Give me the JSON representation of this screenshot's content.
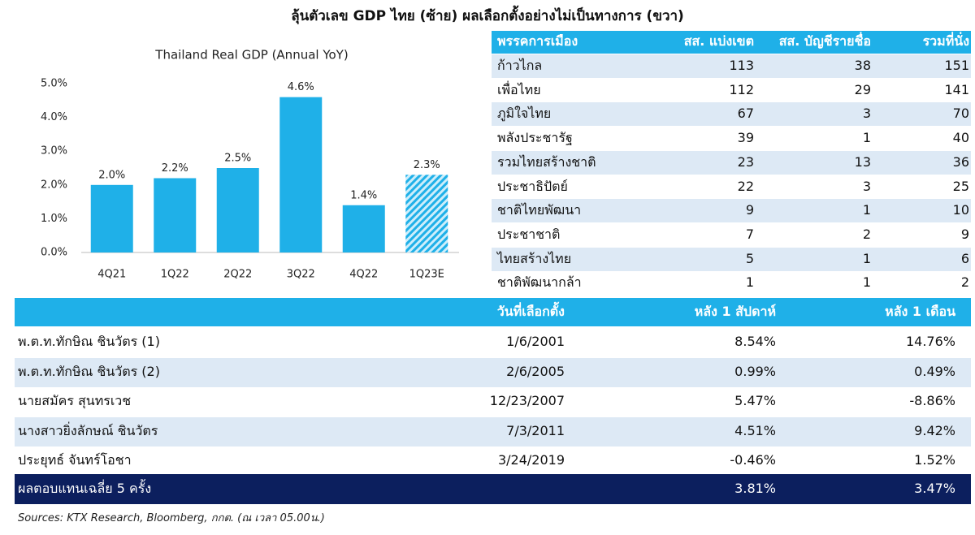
{
  "title": "ลุ้นตัวเลข GDP ไทย (ซ้าย) ผลเลือกตั้งอย่างไม่เป็นทางการ (ขวา)",
  "chart_data": {
    "type": "bar",
    "title": "Thailand Real GDP (Annual YoY)",
    "categories": [
      "4Q21",
      "1Q22",
      "2Q22",
      "3Q22",
      "4Q22",
      "1Q23E"
    ],
    "values": [
      2.0,
      2.2,
      2.5,
      4.6,
      1.4,
      2.3
    ],
    "value_labels": [
      "2.0%",
      "2.2%",
      "2.5%",
      "4.6%",
      "1.4%",
      "2.3%"
    ],
    "patterns": [
      "solid",
      "solid",
      "solid",
      "solid",
      "solid",
      "hatched"
    ],
    "color": "#1fb0e8",
    "ylim": [
      0,
      5
    ],
    "yticks": [
      {
        "value": 0,
        "label": "0.0%"
      },
      {
        "value": 1,
        "label": "1.0%"
      },
      {
        "value": 2,
        "label": "2.0%"
      },
      {
        "value": 3,
        "label": "3.0%"
      },
      {
        "value": 4,
        "label": "4.0%"
      },
      {
        "value": 5,
        "label": "5.0%"
      }
    ],
    "grid": false
  },
  "party_table": {
    "columns": [
      "พรรคการเมือง",
      "สส. แบ่งเขต",
      "สส. บัญชีรายชื่อ",
      "รวมที่นั่ง"
    ],
    "rows": [
      [
        "ก้าวไกล",
        113,
        38,
        151
      ],
      [
        "เพื่อไทย",
        112,
        29,
        141
      ],
      [
        "ภูมิใจไทย",
        67,
        3,
        70
      ],
      [
        "พลังประชารัฐ",
        39,
        1,
        40
      ],
      [
        "รวมไทยสร้างชาติ",
        23,
        13,
        36
      ],
      [
        "ประชาธิปัตย์",
        22,
        3,
        25
      ],
      [
        "ชาติไทยพัฒนา",
        9,
        1,
        10
      ],
      [
        "ประชาชาติ",
        7,
        2,
        9
      ],
      [
        "ไทยสร้างไทย",
        5,
        1,
        6
      ],
      [
        "ชาติพัฒนากล้า",
        1,
        1,
        2
      ]
    ]
  },
  "election_table": {
    "columns": [
      "วันที่เลือกตั้ง",
      "หลัง 1 สัปดาห์",
      "หลัง 1 เดือน"
    ],
    "rows": [
      [
        "พ.ต.ท.ทักษิณ ชินวัตร (1)",
        "1/6/2001",
        "8.54%",
        "14.76%"
      ],
      [
        "พ.ต.ท.ทักษิณ ชินวัตร (2)",
        "2/6/2005",
        "0.99%",
        "0.49%"
      ],
      [
        "นายสมัคร สุนทรเวช",
        "12/23/2007",
        "5.47%",
        "-8.86%"
      ],
      [
        "นางสาวยิ่งลักษณ์ ชินวัตร",
        "7/3/2011",
        "4.51%",
        "9.42%"
      ],
      [
        "ประยุทธ์ จันทร์โอชา",
        "3/24/2019",
        "-0.46%",
        "1.52%"
      ]
    ],
    "summary": [
      "ผลตอบแทนเฉลี่ย 5 ครั้ง",
      "3.81%",
      "3.47%"
    ]
  },
  "source": "Sources: KTX Research, Bloomberg, กกต. (ณ เวลา 05.00น.)"
}
